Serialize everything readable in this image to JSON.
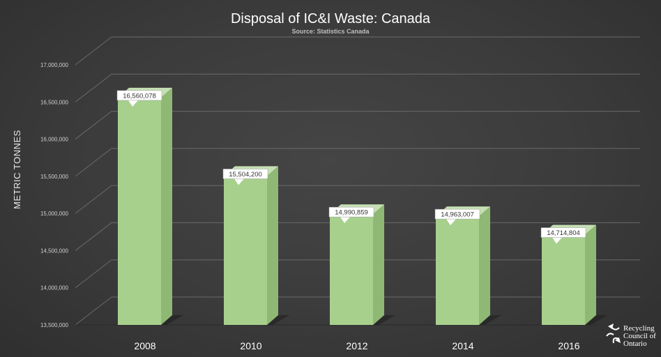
{
  "chart_data": {
    "type": "bar",
    "title": "Disposal of IC&I Waste: Canada",
    "subtitle": "Source: Statistics Canada",
    "xlabel": "",
    "ylabel": "METRIC TONNES",
    "categories": [
      "2008",
      "2010",
      "2012",
      "2014",
      "2016"
    ],
    "values": [
      16560078,
      15504200,
      14990859,
      14963007,
      14714804
    ],
    "value_labels": [
      "16,560,078",
      "15,504,200",
      "14,990,859",
      "14,963,007",
      "14,714,804"
    ],
    "ylim": [
      13500000,
      17000000
    ],
    "yticks": [
      13500000,
      14000000,
      14500000,
      15000000,
      15500000,
      16000000,
      16500000,
      17000000
    ],
    "ytick_labels": [
      "13,500,000",
      "14,000,000",
      "14,500,000",
      "15,000,000",
      "15,500,000",
      "16,000,000",
      "16,500,000",
      "17,000,000"
    ],
    "grid": true,
    "legend": "none"
  },
  "colors": {
    "bar_front": "#a8d08d",
    "bar_side": "#8fb874",
    "bar_top": "#c5e0b3",
    "grid": "#6a6a6a",
    "tick_text": "#cfcfcf",
    "category_text": "#ffffff"
  },
  "logo": {
    "lines": [
      "Recycling",
      "Council of",
      "Ontario"
    ],
    "icon": "recycling-arrows-icon"
  }
}
